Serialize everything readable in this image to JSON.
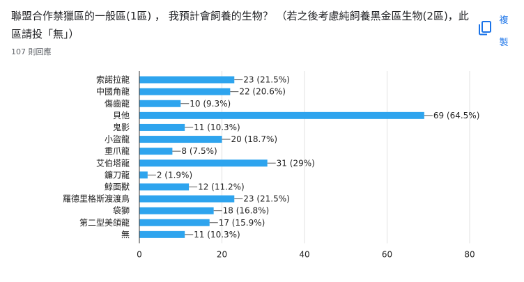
{
  "question": {
    "title": "聯盟合作禁獵區的一般區(1區) ， 我預計會飼養的生物？ （若之後考慮純飼養黑金區生物(2區)，此區請投「無」）",
    "responses": "107 則回應"
  },
  "actions": {
    "copy_label": "複製",
    "copy_icon": "copy-icon"
  },
  "colors": {
    "bar": "#2ea4ee",
    "grid": "#e0e0e0",
    "axis": "#333333",
    "text": "#222222",
    "accent": "#1a73e8"
  },
  "chart_data": {
    "type": "bar",
    "orientation": "horizontal",
    "categories": [
      "索諾拉龍",
      "中國角龍",
      "傷齒龍",
      "貝他",
      "鬼影",
      "小盜龍",
      "重爪龍",
      "艾伯塔龍",
      "鐮刀龍",
      "鯨面獸",
      "羅德里格斯渡渡鳥",
      "袋獅",
      "第二型美頜龍",
      "無"
    ],
    "values": [
      23,
      22,
      10,
      69,
      11,
      20,
      8,
      31,
      2,
      12,
      23,
      18,
      17,
      11
    ],
    "data_labels": [
      "23 (21.5%)",
      "22 (20.6%)",
      "10 (9.3%)",
      "69 (64.5%)",
      "11 (10.3%)",
      "20 (18.7%)",
      "8 (7.5%)",
      "31 (29%)",
      "2 (1.9%)",
      "12 (11.2%)",
      "23 (21.5%)",
      "18 (16.8%)",
      "17 (15.9%)",
      "11 (10.3%)"
    ],
    "xlim": [
      0,
      80
    ],
    "xticks": [
      0,
      20,
      40,
      60,
      80
    ],
    "grid": true,
    "legend": "none"
  }
}
